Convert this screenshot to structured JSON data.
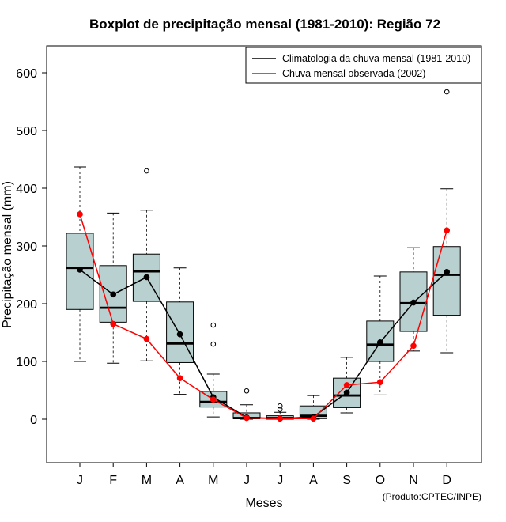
{
  "chart_data": {
    "type": "boxplot",
    "title": "Boxplot de precipitação mensal (1981-2010): Região 72",
    "xlabel": "Meses",
    "ylabel": "Precipitação mensal (mm)",
    "credit": "(Produto:CPTEC/INPE)",
    "ylim": [
      -75,
      640
    ],
    "yticks": [
      0,
      100,
      200,
      300,
      400,
      500,
      600
    ],
    "ytick_labels": [
      "0",
      "100",
      "200",
      "300",
      "400",
      "500",
      "600"
    ],
    "categories": [
      "J",
      "F",
      "M",
      "A",
      "M",
      "J",
      "J",
      "A",
      "S",
      "O",
      "N",
      "D"
    ],
    "boxes": [
      {
        "whisker_low": 100,
        "q1": 190,
        "median": 262,
        "q3": 322,
        "whisker_high": 437,
        "outliers": []
      },
      {
        "whisker_low": 97,
        "q1": 168,
        "median": 193,
        "q3": 266,
        "whisker_high": 357,
        "outliers": []
      },
      {
        "whisker_low": 101,
        "q1": 204,
        "median": 256,
        "q3": 286,
        "whisker_high": 362,
        "outliers": [
          430
        ]
      },
      {
        "whisker_low": 43,
        "q1": 98,
        "median": 131,
        "q3": 203,
        "whisker_high": 262,
        "outliers": []
      },
      {
        "whisker_low": 4,
        "q1": 21,
        "median": 30,
        "q3": 48,
        "whisker_high": 78,
        "outliers": [
          130,
          163
        ]
      },
      {
        "whisker_low": 0,
        "q1": 1,
        "median": 2,
        "q3": 11,
        "whisker_high": 25,
        "outliers": [
          49
        ]
      },
      {
        "whisker_low": 0,
        "q1": 0,
        "median": 2,
        "q3": 6,
        "whisker_high": 12,
        "outliers": [
          17,
          23
        ]
      },
      {
        "whisker_low": 0,
        "q1": 1,
        "median": 6,
        "q3": 23,
        "whisker_high": 41,
        "outliers": []
      },
      {
        "whisker_low": 11,
        "q1": 20,
        "median": 41,
        "q3": 71,
        "whisker_high": 107,
        "outliers": []
      },
      {
        "whisker_low": 42,
        "q1": 100,
        "median": 129,
        "q3": 170,
        "whisker_high": 248,
        "outliers": []
      },
      {
        "whisker_low": 118,
        "q1": 152,
        "median": 201,
        "q3": 255,
        "whisker_high": 297,
        "outliers": []
      },
      {
        "whisker_low": 115,
        "q1": 180,
        "median": 250,
        "q3": 299,
        "whisker_high": 399,
        "outliers": [
          567
        ]
      }
    ],
    "series": [
      {
        "name": "Climatologia da chuva mensal (1981-2010)",
        "color": "#000000",
        "values": [
          259,
          216,
          246,
          147,
          38,
          3,
          1,
          4,
          46,
          133,
          202,
          255
        ]
      },
      {
        "name": "Chuva mensal observada (2002)",
        "color": "#ff0000",
        "values": [
          355,
          165,
          139,
          71,
          34,
          2,
          1,
          1,
          59,
          64,
          127,
          327
        ]
      }
    ],
    "box_fill": "#b8d0cf",
    "legend_position": "top-right"
  }
}
